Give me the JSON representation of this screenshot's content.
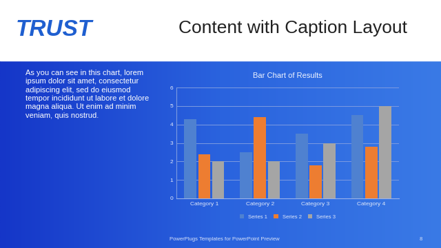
{
  "slide": {
    "title": "Content with Caption Layout",
    "logo_text": "TRUST",
    "caption": "As you can see in this chart, lorem ipsum dolor sit amet, consectetur adipiscing elit, sed do eiusmod tempor incididunt ut labore et dolore magna aliqua. Ut enim ad minim veniam, quis nostrud.",
    "footer": "PowerPlugs Templates for PowerPoint Preview",
    "page": 8
  },
  "chart_data": {
    "type": "bar",
    "title": "Bar Chart of Results",
    "categories": [
      "Category 1",
      "Category 2",
      "Category 3",
      "Category 4"
    ],
    "series": [
      {
        "name": "Series 1",
        "color": "#4f81d0",
        "values": [
          4.3,
          2.5,
          3.5,
          4.5
        ]
      },
      {
        "name": "Series 2",
        "color": "#ed7d31",
        "values": [
          2.4,
          4.4,
          1.8,
          2.8
        ]
      },
      {
        "name": "Series 3",
        "color": "#a5a5a5",
        "values": [
          2,
          2,
          3,
          5
        ]
      }
    ],
    "ylim": [
      0,
      6
    ],
    "yticks": [
      0,
      1,
      2,
      3,
      4,
      5,
      6
    ],
    "grid": true,
    "legend": "bottom"
  }
}
